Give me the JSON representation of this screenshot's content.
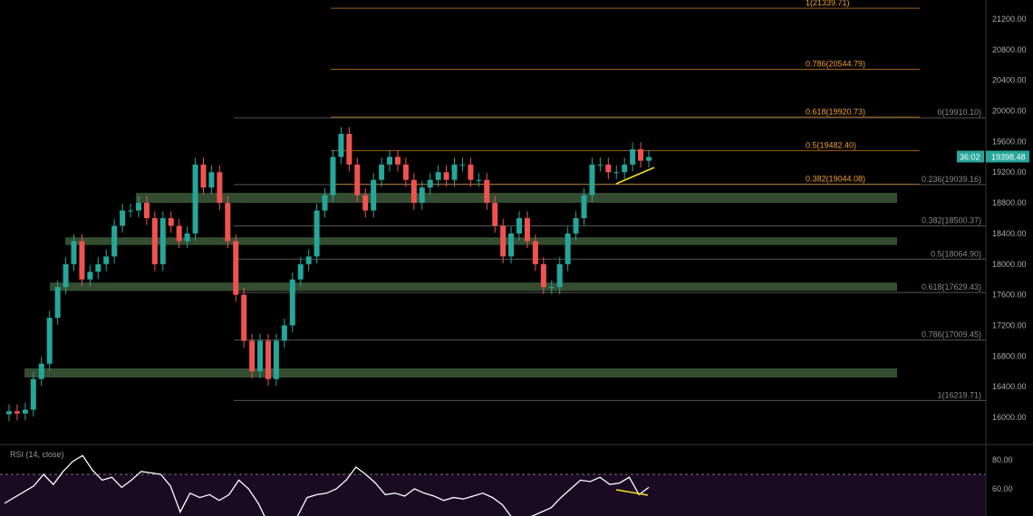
{
  "chart_data": {
    "type": "candlestick",
    "price_axis": {
      "ticks": [
        "21200.00",
        "20800.00",
        "20400.00",
        "20000.00",
        "19600.00",
        "19200.00",
        "18800.00",
        "18400.00",
        "18000.00",
        "17600.00",
        "17200.00",
        "16800.00",
        "16400.00",
        "16000.00"
      ],
      "range": [
        15700,
        21450
      ]
    },
    "last_price": "19398.48",
    "countdown": "36:02",
    "colors": {
      "up": "#26a69a",
      "down": "#ef5350",
      "zone": "#3d5a3a",
      "fib_orange": "#f0a030",
      "fib_grey": "#8a8a8a",
      "trendline": "#f5e11a",
      "last_price_tag": "#26a69a",
      "rsi_line": "#ffffff",
      "rsi_band": "#1a0a22"
    },
    "closes": [
      16080,
      16050,
      16100,
      16500,
      16700,
      17300,
      17700,
      18000,
      18300,
      17800,
      17900,
      18000,
      18100,
      18500,
      18700,
      18700,
      18800,
      18600,
      18000,
      18600,
      18500,
      18300,
      18400,
      19300,
      19000,
      19200,
      18800,
      18300,
      17600,
      17000,
      16600,
      17000,
      16500,
      17000,
      17200,
      17800,
      18000,
      18100,
      18700,
      18900,
      19400,
      19700,
      19300,
      18900,
      18700,
      19100,
      19300,
      19400,
      19300,
      19100,
      18800,
      19000,
      19100,
      19200,
      19100,
      19300,
      19300,
      19100,
      19100,
      18800,
      18500,
      18100,
      18400,
      18600,
      18300,
      18000,
      17700,
      17700,
      18000,
      18400,
      18600,
      18900,
      19300,
      19300,
      19200,
      19200,
      19300,
      19500,
      19350,
      19398.48
    ],
    "demand_zones": [
      [
        18800,
        18930
      ],
      [
        18250,
        18350
      ],
      [
        17650,
        17760
      ],
      [
        16520,
        16640
      ]
    ],
    "fib_right": [
      {
        "label": "0(19910.10)",
        "price": 19910.1
      },
      {
        "label": "0.236(19039.16)",
        "price": 19039.16
      },
      {
        "label": "0.382(18500.37)",
        "price": 18500.37
      },
      {
        "label": "0.5(18064.90)",
        "price": 18064.9
      },
      {
        "label": "0.618(17629.43)",
        "price": 17629.43
      },
      {
        "label": "0.786(17009.45)",
        "price": 17009.45
      },
      {
        "label": "1(16219.71)",
        "price": 16219.71
      }
    ],
    "fib_left": [
      {
        "label": "1(21339.71)",
        "price": 21339.71
      },
      {
        "label": "0.786(20544.79)",
        "price": 20544.79
      },
      {
        "label": "0.618(19920.73)",
        "price": 19920.73
      },
      {
        "label": "0.5(19482.40)",
        "price": 19482.4
      },
      {
        "label": "0.382(19044.08)",
        "price": 19044.08
      }
    ],
    "rsi": {
      "title": "RSI (14, close)",
      "ticks": [
        "80.00",
        "60.00"
      ],
      "overbought": 70,
      "values": [
        50,
        54,
        58,
        62,
        70,
        63,
        72,
        79,
        83,
        73,
        66,
        68,
        61,
        66,
        72,
        71,
        70,
        62,
        44,
        57,
        54,
        56,
        52,
        56,
        66,
        60,
        50,
        36,
        36,
        38,
        41,
        54,
        56,
        57,
        60,
        66,
        75,
        70,
        64,
        56,
        57,
        55,
        60,
        57,
        55,
        52,
        54,
        53,
        55,
        57,
        54,
        49,
        40,
        40,
        41,
        44,
        47,
        54,
        60,
        66,
        65,
        68,
        63,
        64,
        68,
        56,
        61
      ]
    }
  }
}
